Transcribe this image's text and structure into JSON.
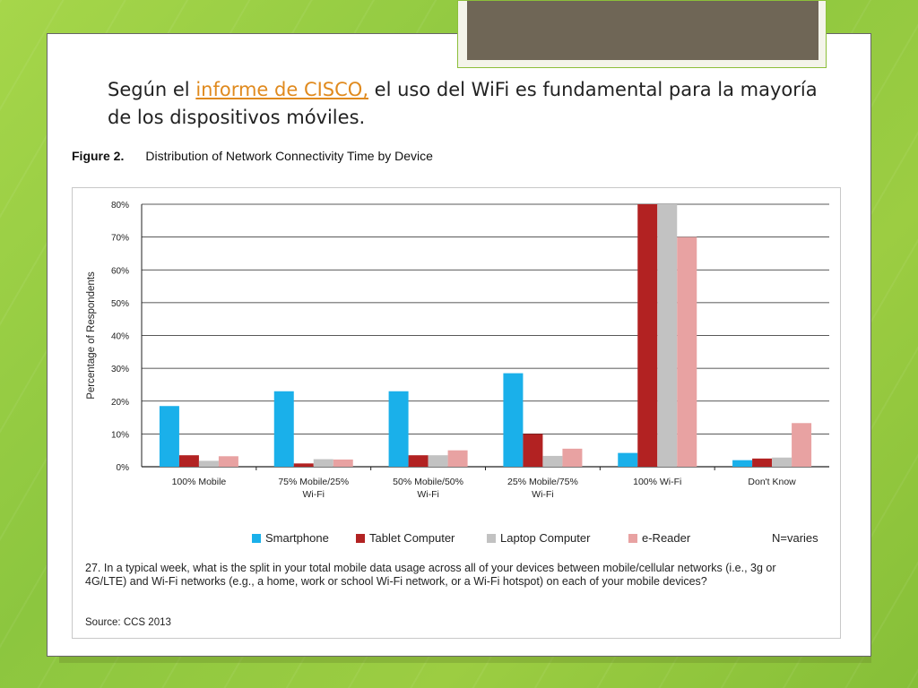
{
  "intro": {
    "prefix": "Según el ",
    "link": "informe de CISCO,",
    "suffix": " el uso del WiFi es fundamental para la mayoría de los dispositivos móviles."
  },
  "figure": {
    "label": "Figure 2.",
    "title": "Distribution of Network Connectivity Time by Device",
    "n_note": "N=varies",
    "question": "27. In a typical week, what is the split in your total mobile data usage across all of your devices between mobile/cellular networks (i.e., 3g or 4G/LTE) and Wi-Fi networks (e.g., a home, work or school Wi-Fi network, or a Wi-Fi hotspot) on each of your mobile devices?",
    "source": "Source: CCS 2013"
  },
  "chart_data": {
    "type": "bar",
    "title": "Distribution of Network Connectivity Time by Device",
    "xlabel": "",
    "ylabel": "Percentage of Respondents",
    "ylim": [
      0,
      80
    ],
    "yticks": [
      "0%",
      "10%",
      "20%",
      "30%",
      "40%",
      "50%",
      "60%",
      "70%",
      "80%"
    ],
    "grid": true,
    "legend_position": "bottom",
    "categories": [
      [
        "100% Mobile"
      ],
      [
        "75% Mobile/25%",
        "Wi-Fi"
      ],
      [
        "50% Mobile/50%",
        "Wi-Fi"
      ],
      [
        "25% Mobile/75%",
        "Wi-Fi"
      ],
      [
        "100% Wi-Fi"
      ],
      [
        "Don't Know"
      ]
    ],
    "series": [
      {
        "name": "Smartphone",
        "color": "#1ab0ea",
        "values": [
          18.5,
          23,
          23,
          28.5,
          4.2,
          2
        ]
      },
      {
        "name": "Tablet Computer",
        "color": "#b22222",
        "values": [
          3.5,
          1,
          3.5,
          10,
          80,
          2.5
        ]
      },
      {
        "name": "Laptop Computer",
        "color": "#c2c2c2",
        "values": [
          1.8,
          2.3,
          3.5,
          3.3,
          80,
          2.8
        ]
      },
      {
        "name": "e-Reader",
        "color": "#e8a2a2",
        "values": [
          3.2,
          2.2,
          5,
          5.5,
          70,
          13.3
        ]
      }
    ]
  }
}
